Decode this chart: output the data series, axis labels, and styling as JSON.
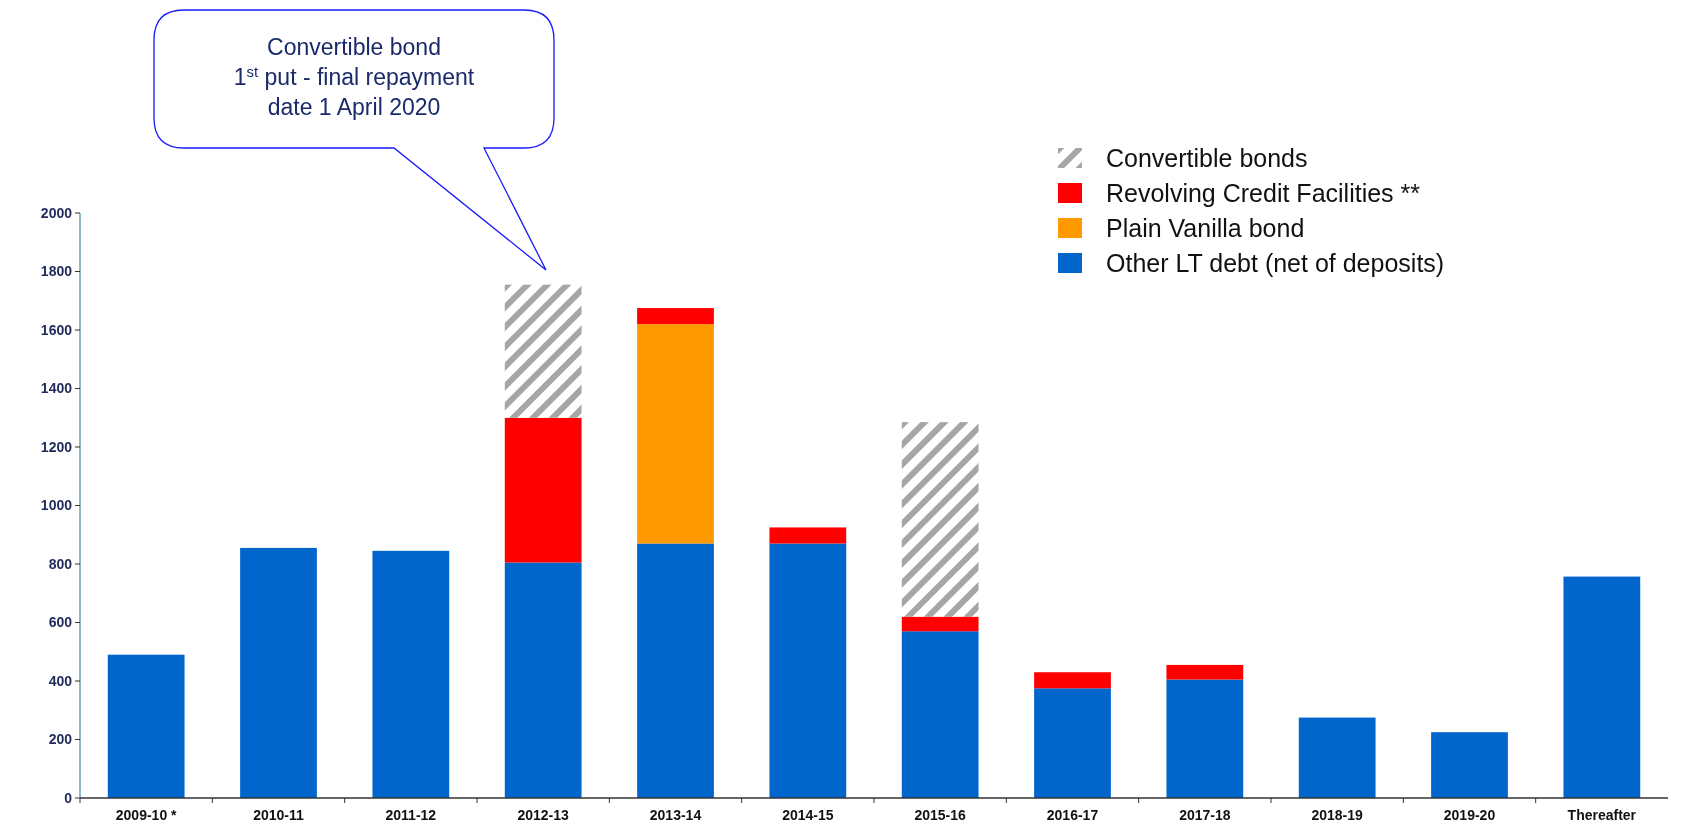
{
  "chart_data": {
    "type": "bar",
    "stacked": true,
    "categories": [
      "2009-10 *",
      "2010-11",
      "2011-12",
      "2012-13",
      "2013-14",
      "2014-15",
      "2015-16",
      "2016-17",
      "2017-18",
      "2018-19",
      "2019-20",
      "Thereafter"
    ],
    "series": [
      {
        "name": "Other LT debt (net of deposits)",
        "color": "#0066cc",
        "values": [
          490,
          855,
          845,
          805,
          870,
          870,
          570,
          375,
          405,
          275,
          225,
          757
        ]
      },
      {
        "name": "Plain Vanilla bond",
        "color": "#ff9900",
        "values": [
          null,
          null,
          null,
          null,
          750,
          null,
          null,
          null,
          null,
          null,
          null,
          null
        ]
      },
      {
        "name": "Revolving Credit Facilities **",
        "color": "#ff0000",
        "values": [
          null,
          null,
          null,
          495,
          55,
          55,
          50,
          55,
          50,
          null,
          null,
          null
        ]
      },
      {
        "name": "Convertible bonds",
        "color": "#a6a6a6",
        "values": [
          null,
          null,
          null,
          455,
          null,
          null,
          665,
          null,
          null,
          null,
          null,
          null
        ]
      }
    ],
    "ylim": [
      0,
      2000
    ],
    "yticks": [
      0,
      200,
      400,
      600,
      800,
      1000,
      1200,
      1400,
      1600,
      1800,
      2000
    ],
    "legend": "top right",
    "annotations": [
      "Convertible bond\n1$^{st}$ put - final repayment\ndate 1 April 2020"
    ]
  }
}
